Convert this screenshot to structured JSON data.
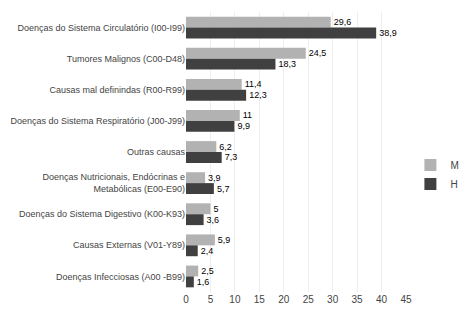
{
  "chart_data": {
    "type": "bar",
    "orientation": "horizontal",
    "categories": [
      "Doenças do Sistema Circulatório (I00-I99)",
      "Tumores Malignos (C00-D48)",
      "Causas mal definindas (R00-R99)",
      "Doenças do Sistema Respiratório (J00-J99)",
      "Outras causas",
      "Doenças Nutricionais, Endócrinas e\nMetabólicas (E00-E90)",
      "Doenças do Sistema Digestivo (K00-K93)",
      "Causas Externas (V01-Y89)",
      "Doenças Infecciosas (A00 -B99)"
    ],
    "series": [
      {
        "name": "M",
        "color": "#b2b2b2",
        "values": [
          29.6,
          24.5,
          11.4,
          11.0,
          6.2,
          3.9,
          5.0,
          5.9,
          2.5
        ],
        "value_labels": [
          "29,6",
          "24,5",
          "11,4",
          "11",
          "6,2",
          "3,9",
          "5",
          "5,9",
          "2,5"
        ]
      },
      {
        "name": "H",
        "color": "#404040",
        "values": [
          38.9,
          18.3,
          12.3,
          9.9,
          7.3,
          5.7,
          3.6,
          2.4,
          1.6
        ],
        "value_labels": [
          "38,9",
          "18,3",
          "12,3",
          "9,9",
          "7,3",
          "5,7",
          "3,6",
          "2,4",
          "1,6"
        ]
      }
    ],
    "xlim": [
      0,
      45
    ],
    "xticks": [
      0,
      5,
      10,
      15,
      20,
      25,
      30,
      35,
      40,
      45
    ],
    "grid": true,
    "data_labels": true,
    "legend": "right"
  }
}
